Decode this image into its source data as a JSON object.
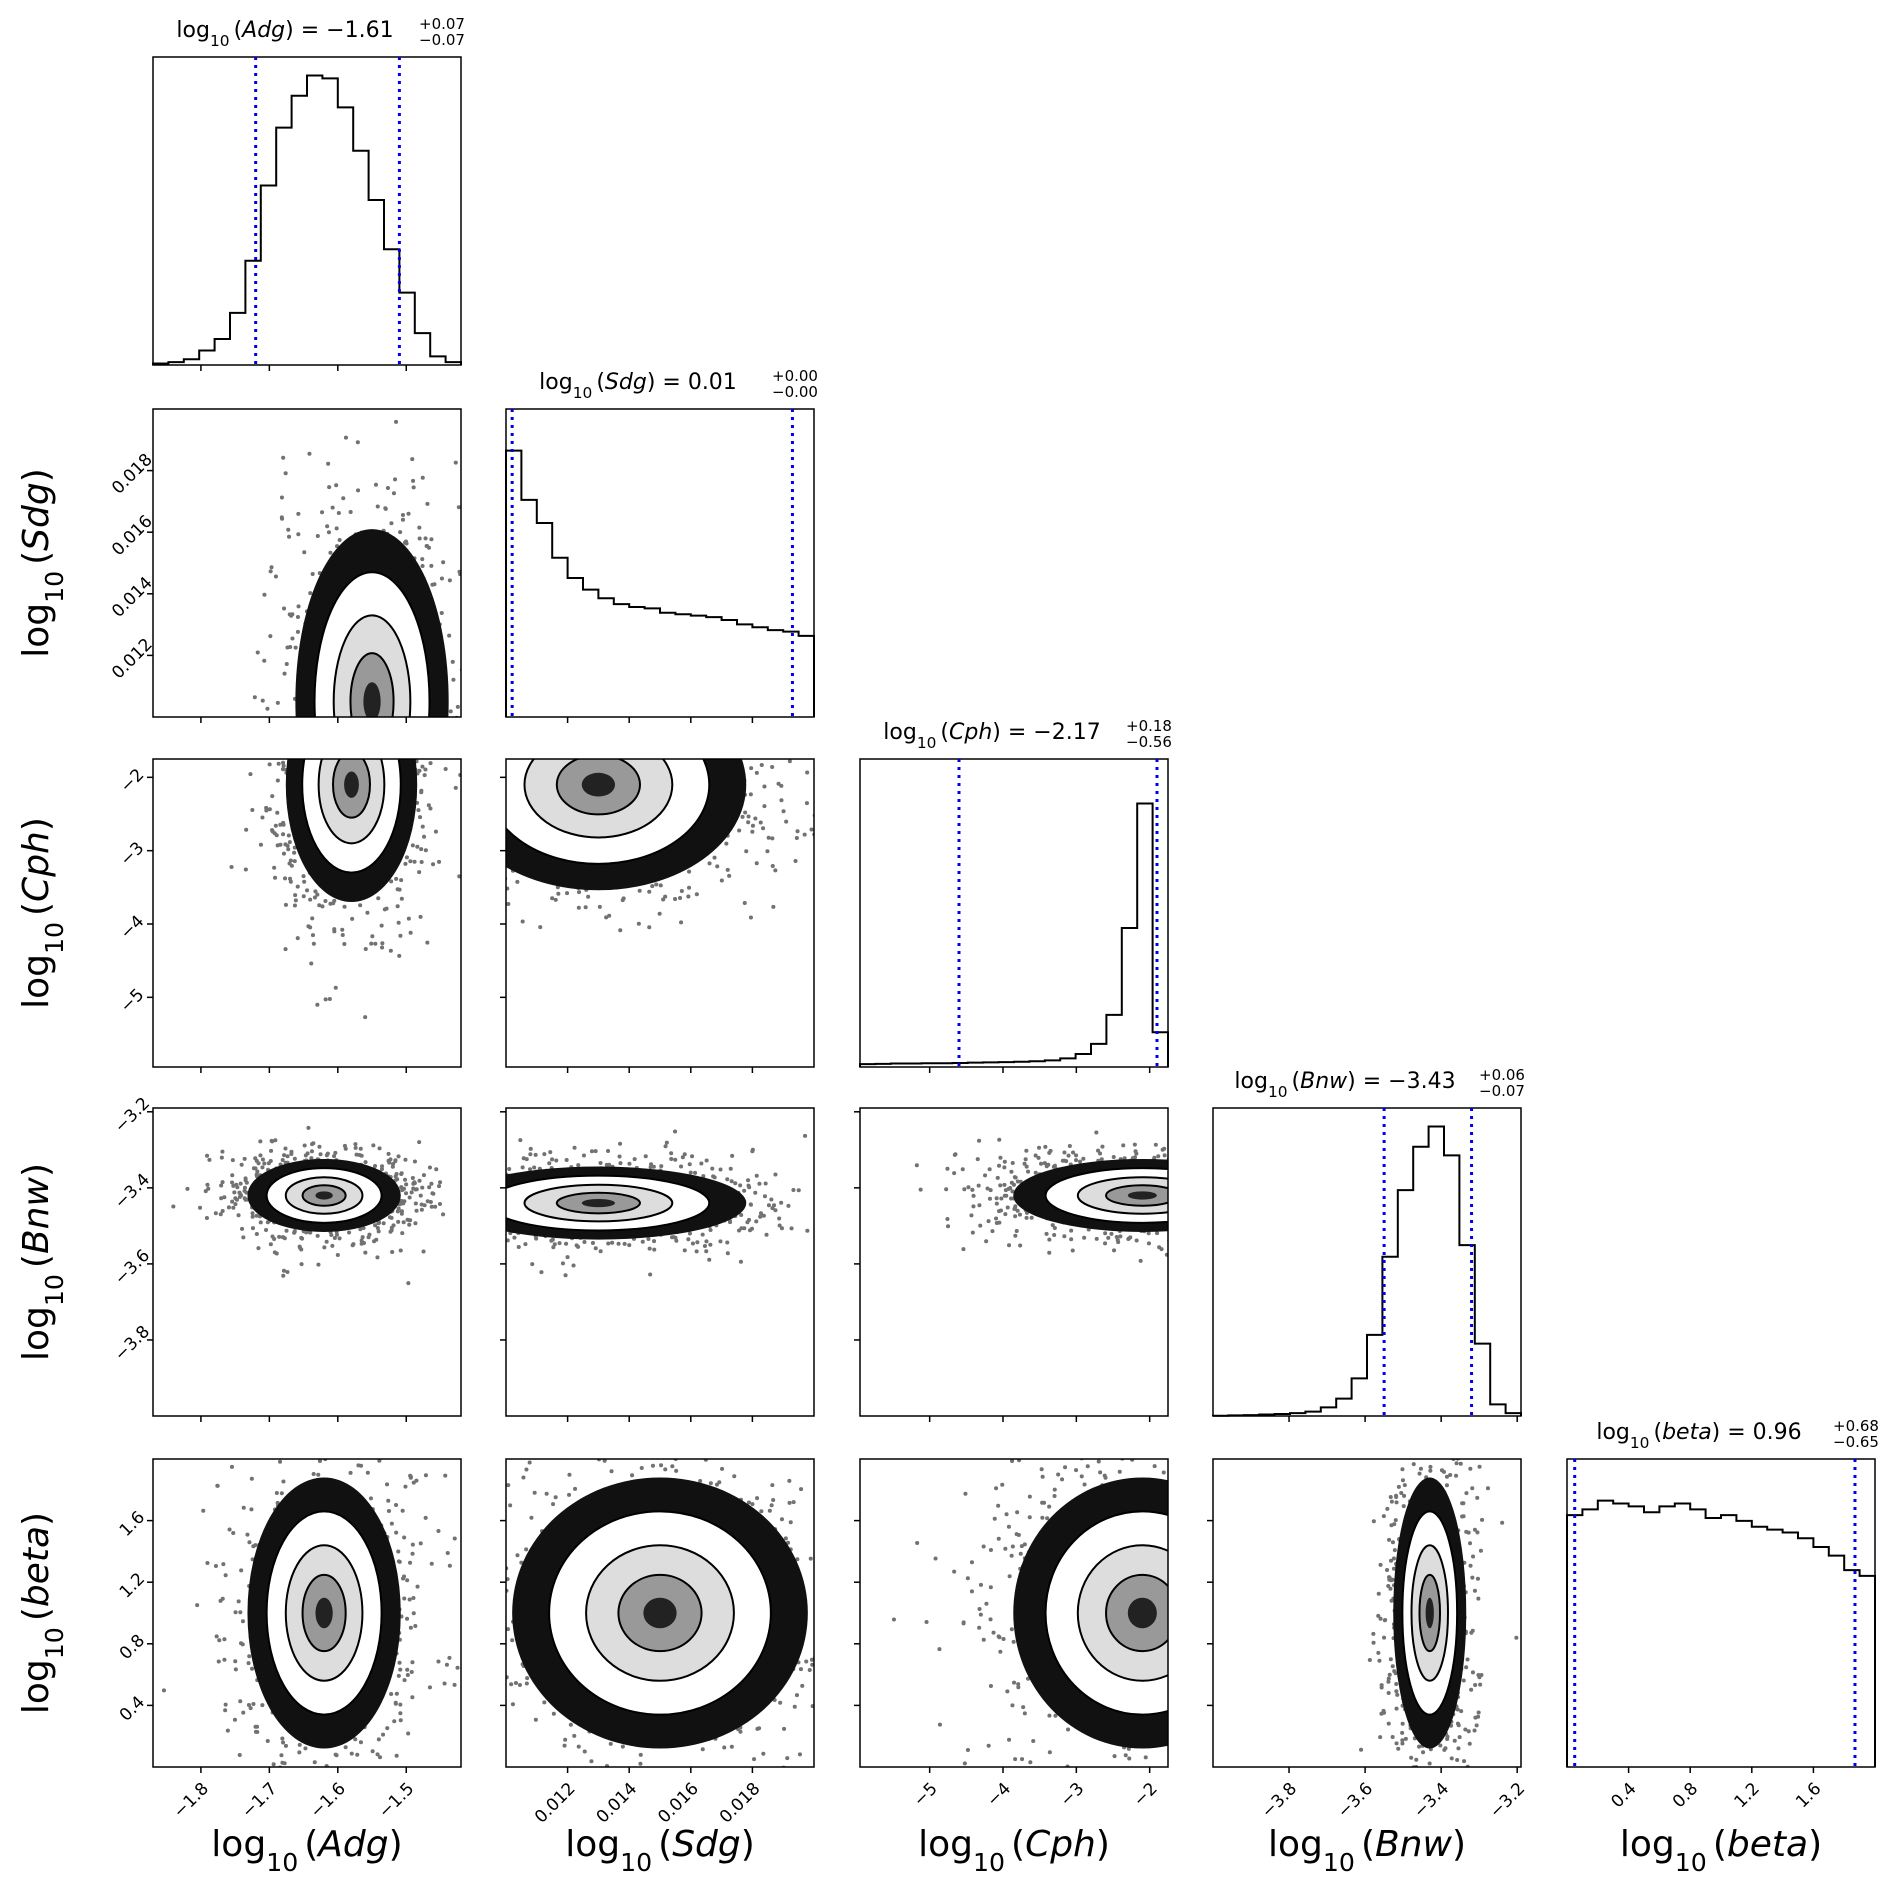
{
  "chart_data": {
    "type": "corner",
    "parameters": [
      {
        "name": "Adg",
        "label_prefix": "log",
        "label_sub": "10",
        "label_var": "Adg",
        "range": [
          -1.87,
          -1.42
        ],
        "ticks": [
          -1.8,
          -1.7,
          -1.6,
          -1.5
        ],
        "title_value": "−1.61",
        "title_plus": "+0.07",
        "title_minus": "−0.07",
        "quantiles": [
          -1.72,
          -1.51
        ],
        "hist": [
          0.005,
          0.01,
          0.02,
          0.05,
          0.09,
          0.18,
          0.36,
          0.62,
          0.82,
          0.93,
          1.0,
          0.99,
          0.89,
          0.74,
          0.57,
          0.4,
          0.25,
          0.11,
          0.03,
          0.01
        ]
      },
      {
        "name": "Sdg",
        "label_prefix": "log",
        "label_sub": "10",
        "label_var": "Sdg",
        "range": [
          0.01,
          0.02
        ],
        "ticks": [
          0.012,
          0.014,
          0.016,
          0.018
        ],
        "title_value": "0.01",
        "title_plus": "+0.00",
        "title_minus": "−0.00",
        "quantiles": [
          0.0102,
          0.0193
        ],
        "hist": [
          0.92,
          0.75,
          0.67,
          0.55,
          0.48,
          0.44,
          0.41,
          0.39,
          0.38,
          0.375,
          0.36,
          0.355,
          0.35,
          0.345,
          0.335,
          0.32,
          0.31,
          0.3,
          0.295,
          0.28
        ]
      },
      {
        "name": "Cph",
        "label_prefix": "log",
        "label_sub": "10",
        "label_var": "Cph",
        "range": [
          -5.95,
          -1.75
        ],
        "ticks": [
          -5,
          -4,
          -3,
          -2
        ],
        "title_value": "−2.17",
        "title_plus": "+0.18",
        "title_minus": "−0.56",
        "quantiles": [
          -4.6,
          -1.9
        ],
        "hist": [
          0.01,
          0.011,
          0.012,
          0.012,
          0.013,
          0.013,
          0.014,
          0.015,
          0.016,
          0.017,
          0.018,
          0.02,
          0.023,
          0.03,
          0.045,
          0.08,
          0.18,
          0.48,
          0.91,
          0.12
        ]
      },
      {
        "name": "Bnw",
        "label_prefix": "log",
        "label_sub": "10",
        "label_var": "Bnw",
        "range": [
          -4.0,
          -3.19
        ],
        "ticks": [
          -3.8,
          -3.6,
          -3.4,
          -3.2
        ],
        "title_value": "−3.43",
        "title_plus": "+0.06",
        "title_minus": "−0.07",
        "quantiles": [
          -3.55,
          -3.32
        ],
        "hist": [
          0.001,
          0.002,
          0.003,
          0.005,
          0.007,
          0.01,
          0.015,
          0.03,
          0.06,
          0.13,
          0.28,
          0.55,
          0.78,
          0.93,
          1.0,
          0.9,
          0.59,
          0.25,
          0.04,
          0.01
        ]
      },
      {
        "name": "beta",
        "label_prefix": "log",
        "label_sub": "10",
        "label_var": "beta",
        "range": [
          0.0,
          2.0
        ],
        "ticks": [
          0.4,
          0.8,
          1.2,
          1.6
        ],
        "title_value": "0.96",
        "title_plus": "+0.68",
        "title_minus": "−0.65",
        "quantiles": [
          0.05,
          1.87
        ],
        "hist": [
          0.87,
          0.89,
          0.92,
          0.91,
          0.9,
          0.88,
          0.9,
          0.91,
          0.89,
          0.86,
          0.87,
          0.85,
          0.83,
          0.82,
          0.81,
          0.79,
          0.76,
          0.73,
          0.68,
          0.66
        ]
      }
    ],
    "title_template": "log10 (X) = value",
    "quantile_line_color": "#0000ee",
    "hist_color": "#000000",
    "contour_color": "#000000",
    "grid": false
  }
}
